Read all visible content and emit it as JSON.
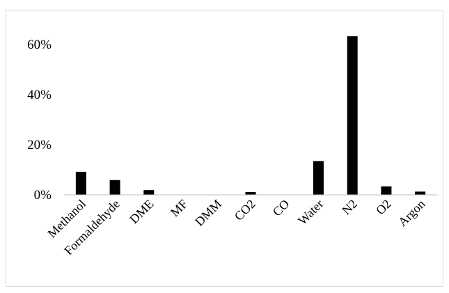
{
  "chart_data": {
    "type": "bar",
    "title": "",
    "xlabel": "",
    "ylabel": "",
    "categories": [
      "Methanol",
      "Formaldehyde",
      "DME",
      "MF",
      "DMM",
      "CO2",
      "CO",
      "Water",
      "N2",
      "O2",
      "Argon"
    ],
    "values": [
      9.2,
      5.9,
      1.9,
      0.1,
      0.1,
      1.1,
      0.1,
      13.5,
      63.3,
      3.4,
      1.3
    ],
    "value_unit": "%",
    "ylim": [
      0,
      70
    ],
    "yticks": [
      "0%",
      "20%",
      "40%",
      "60%"
    ],
    "ytick_values": [
      0,
      20,
      40,
      60
    ],
    "grid": false,
    "legend": "none",
    "bar_color": "#000000",
    "axis_color": "#bfbfbf"
  }
}
